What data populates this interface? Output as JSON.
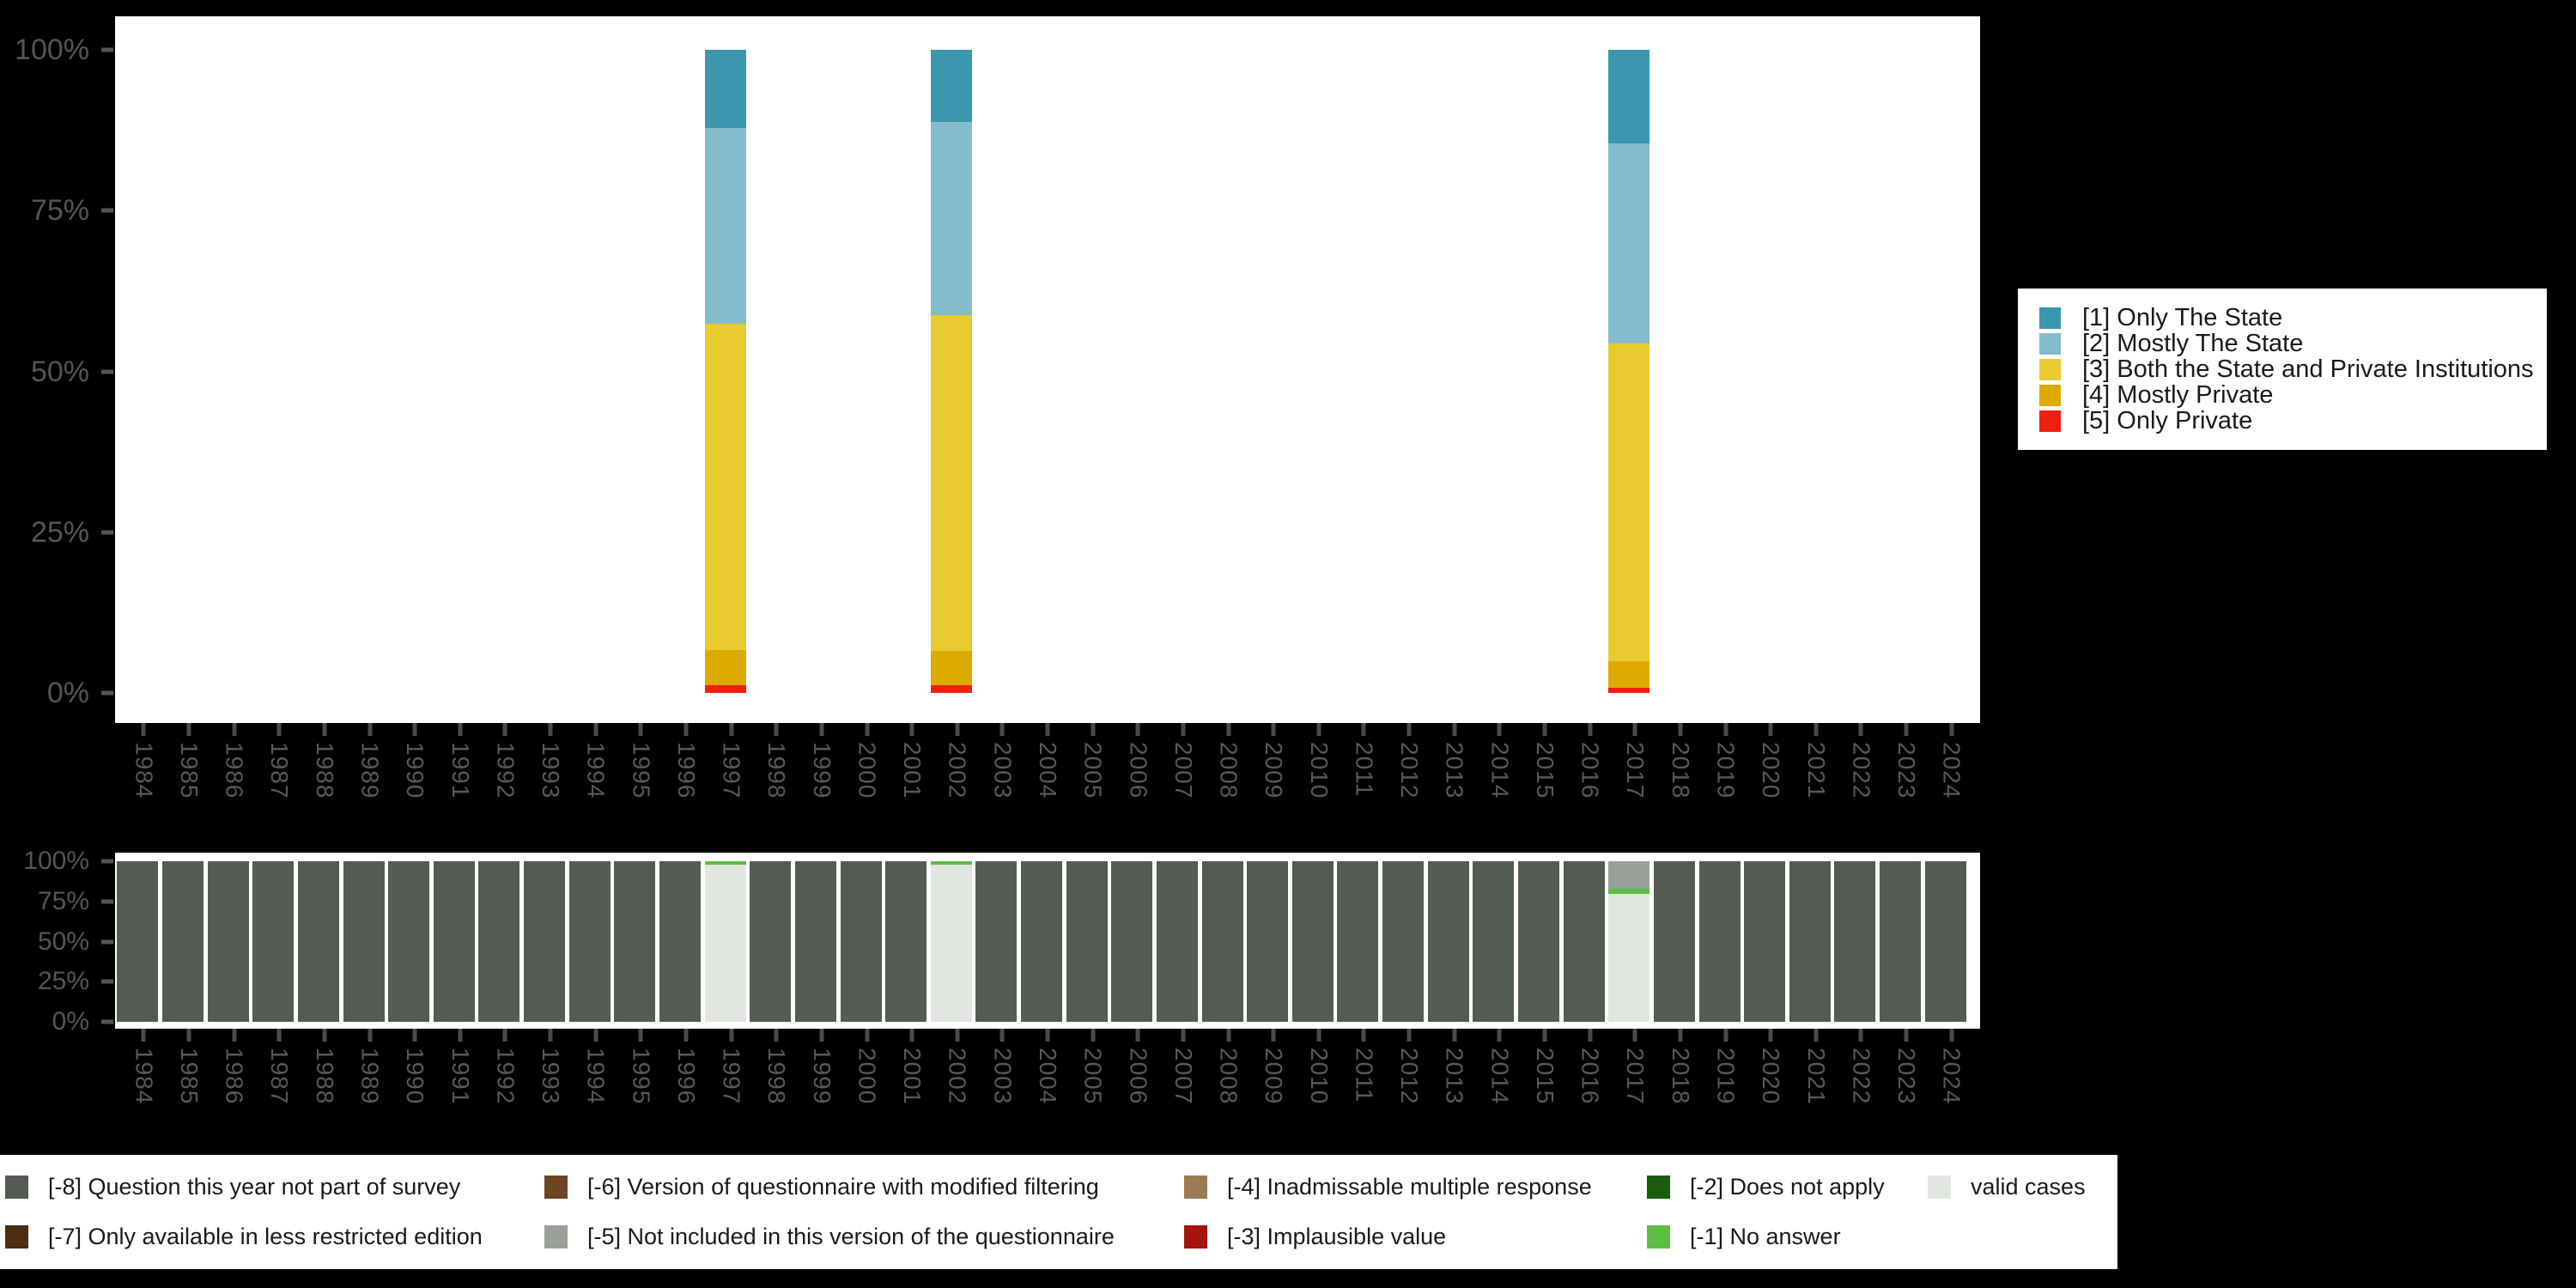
{
  "page": {
    "background": "#000000"
  },
  "colors": {
    "1": "#3A97AD",
    "2": "#85BCCC",
    "3": "#E8CB2F",
    "4": "#DDAB00",
    "5": "#EE2110",
    "-8": "#535B53",
    "-7": "#4B2D11",
    "-6": "#6C4523",
    "-5": "#9AA097",
    "-4": "#9C7B53",
    "-3": "#A4130E",
    "-2": "#1A5C0D",
    "-1": "#5CBF44",
    "valid": "#E2E6E0"
  },
  "years": [
    "1984",
    "1985",
    "1986",
    "1987",
    "1988",
    "1989",
    "1990",
    "1991",
    "1992",
    "1993",
    "1994",
    "1995",
    "1996",
    "1997",
    "1998",
    "1999",
    "2000",
    "2001",
    "2002",
    "2003",
    "2004",
    "2005",
    "2006",
    "2007",
    "2008",
    "2009",
    "2010",
    "2011",
    "2012",
    "2013",
    "2014",
    "2015",
    "2016",
    "2017",
    "2018",
    "2019",
    "2020",
    "2021",
    "2022",
    "2023",
    "2024"
  ],
  "chart_data": [
    {
      "type": "bar",
      "stacked": true,
      "panel": "top",
      "title": "",
      "xlabel": "",
      "ylabel": "",
      "ylim": [
        0,
        100
      ],
      "grid": false,
      "legend_position": "right",
      "y_ticks": [
        "100%",
        "75%",
        "50%",
        "25%",
        "0%"
      ],
      "series": [
        {
          "key": "1",
          "name": "[1] Only The State",
          "values": {
            "1997": 12.1,
            "2002": 11.2,
            "2017": 14.6
          }
        },
        {
          "key": "2",
          "name": "[2] Mostly The State",
          "values": {
            "1997": 30.5,
            "2002": 30.0,
            "2017": 31.0
          }
        },
        {
          "key": "3",
          "name": "[3] Both the State and Private Institutions",
          "values": {
            "1997": 50.7,
            "2002": 52.2,
            "2017": 49.5
          }
        },
        {
          "key": "4",
          "name": "[4] Mostly Private",
          "values": {
            "1997": 5.5,
            "2002": 5.4,
            "2017": 4.1
          }
        },
        {
          "key": "5",
          "name": "[5] Only Private",
          "values": {
            "1997": 1.2,
            "2002": 1.2,
            "2017": 0.8
          }
        }
      ]
    },
    {
      "type": "bar",
      "stacked": true,
      "panel": "bottom",
      "title": "",
      "ylim": [
        0,
        100
      ],
      "grid": false,
      "y_ticks": [
        "100%",
        "75%",
        "50%",
        "25%",
        "0%"
      ],
      "stack_top_down": [
        "-8",
        "-5",
        "-1",
        "valid"
      ],
      "series": [
        {
          "key": "-8",
          "name": "[-8] Question this year not part of survey",
          "values": {
            "1984": 100,
            "1985": 100,
            "1986": 100,
            "1987": 100,
            "1988": 100,
            "1989": 100,
            "1990": 100,
            "1991": 100,
            "1992": 100,
            "1993": 100,
            "1994": 100,
            "1995": 100,
            "1996": 100,
            "1998": 100,
            "1999": 100,
            "2000": 100,
            "2001": 100,
            "2003": 100,
            "2004": 100,
            "2005": 100,
            "2006": 100,
            "2007": 100,
            "2008": 100,
            "2009": 100,
            "2010": 100,
            "2011": 100,
            "2012": 100,
            "2013": 100,
            "2014": 100,
            "2015": 100,
            "2016": 100,
            "2018": 100,
            "2019": 100,
            "2020": 100,
            "2021": 100,
            "2022": 100,
            "2023": 100,
            "2024": 100
          }
        },
        {
          "key": "-5",
          "name": "[-5] Not included in this version of the questionnaire",
          "values": {
            "2017": 17.2
          }
        },
        {
          "key": "-1",
          "name": "[-1] No answer",
          "values": {
            "1997": 2.3,
            "2002": 2.3,
            "2017": 3.0
          }
        },
        {
          "key": "valid",
          "name": "valid cases",
          "values": {
            "1997": 97.7,
            "2002": 97.7,
            "2017": 79.8
          }
        }
      ]
    }
  ],
  "top_legend": {
    "items": [
      {
        "key": "1",
        "label": "[1] Only The State"
      },
      {
        "key": "2",
        "label": "[2] Mostly The State"
      },
      {
        "key": "3",
        "label": "[3] Both the State and Private Institutions"
      },
      {
        "key": "4",
        "label": "[4] Mostly Private"
      },
      {
        "key": "5",
        "label": "[5] Only Private"
      }
    ]
  },
  "bottom_legend": {
    "columns": [
      [
        {
          "key": "-8",
          "label": "[-8] Question this year not part of survey"
        },
        {
          "key": "-7",
          "label": "[-7] Only available in less restricted edition"
        }
      ],
      [
        {
          "key": "-6",
          "label": "[-6] Version of questionnaire with modified filtering"
        },
        {
          "key": "-5",
          "label": "[-5] Not included in this version of the questionnaire"
        }
      ],
      [
        {
          "key": "-4",
          "label": "[-4] Inadmissable multiple response"
        },
        {
          "key": "-3",
          "label": "[-3] Implausible value"
        }
      ],
      [
        {
          "key": "-2",
          "label": "[-2] Does not apply"
        },
        {
          "key": "-1",
          "label": "[-1] No answer"
        }
      ],
      [
        {
          "key": "valid",
          "label": "valid cases"
        }
      ]
    ]
  }
}
